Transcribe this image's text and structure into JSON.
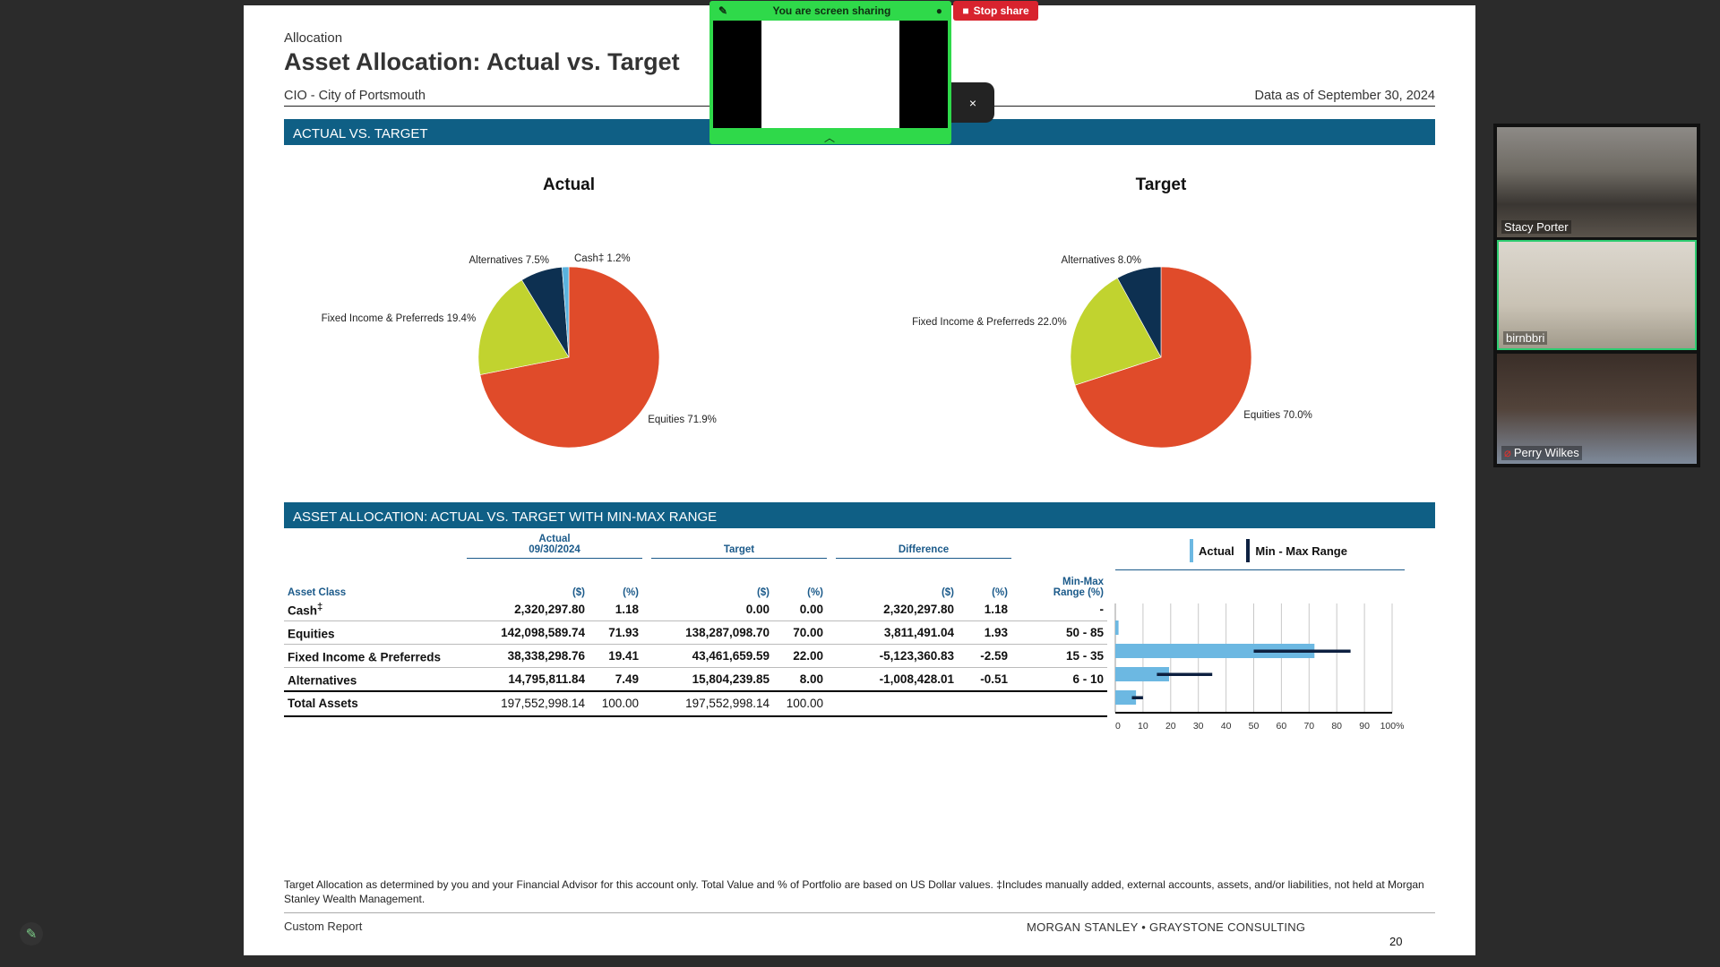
{
  "report": {
    "eyebrow": "Allocation",
    "title": "Asset Allocation: Actual vs. Target",
    "client": "CIO - City of Portsmouth",
    "as_of": "Data as of September 30, 2024"
  },
  "section1": {
    "title": "ACTUAL VS. TARGET"
  },
  "section2": {
    "title": "ASSET ALLOCATION: ACTUAL VS. TARGET WITH MIN-MAX RANGE"
  },
  "colors": {
    "equities": "#e04b2a",
    "fixed_income": "#c1d32f",
    "alternatives": "#0d3051",
    "cash": "#5ab2de",
    "actual_bar": "#6cb8e2",
    "range_bar": "#0d2040",
    "band": "#0f5f85"
  },
  "chart_data": [
    {
      "type": "pie",
      "title": "Actual",
      "labels": [
        "Equities",
        "Fixed Income & Preferreds",
        "Alternatives",
        "Cash‡"
      ],
      "values": [
        71.9,
        19.4,
        7.5,
        1.2
      ],
      "label_text": [
        "Equities 71.9%",
        "Fixed Income & Preferreds 19.4%",
        "Alternatives 7.5%",
        "Cash‡ 1.2%"
      ]
    },
    {
      "type": "pie",
      "title": "Target",
      "labels": [
        "Equities",
        "Fixed Income & Preferreds",
        "Alternatives"
      ],
      "values": [
        70.0,
        22.0,
        8.0
      ],
      "label_text": [
        "Equities 70.0%",
        "Fixed Income & Preferreds 22.0%",
        "Alternatives 8.0%"
      ]
    },
    {
      "type": "bar",
      "orientation": "horizontal",
      "categories": [
        "Cash‡",
        "Equities",
        "Fixed Income & Preferreds",
        "Alternatives"
      ],
      "series": [
        {
          "name": "Actual",
          "values": [
            1.18,
            71.93,
            19.41,
            7.49
          ]
        }
      ],
      "ranges": {
        "name": "Min - Max Range",
        "values": [
          null,
          [
            50,
            85
          ],
          [
            15,
            35
          ],
          [
            6,
            10
          ]
        ]
      },
      "xlim": [
        0,
        100
      ],
      "tick_labels": [
        "0",
        "10",
        "20",
        "30",
        "40",
        "50",
        "60",
        "70",
        "80",
        "90",
        "100%"
      ],
      "legend": "top"
    }
  ],
  "table": {
    "group_headers": {
      "actual_line1": "Actual",
      "actual_line2": "09/30/2024",
      "target": "Target",
      "difference": "Difference"
    },
    "column_headers": {
      "asset_class": "Asset Class",
      "dollars": "($)",
      "pct": "(%)",
      "minmax_line1": "Min-Max",
      "minmax_line2": "Range (%)"
    },
    "rows": [
      {
        "name": "Cash",
        "mark": "‡",
        "actual_usd": "2,320,297.80",
        "actual_pct": "1.18",
        "target_usd": "0.00",
        "target_pct": "0.00",
        "diff_usd": "2,320,297.80",
        "diff_pct": "1.18",
        "range": "-"
      },
      {
        "name": "Equities",
        "mark": "",
        "actual_usd": "142,098,589.74",
        "actual_pct": "71.93",
        "target_usd": "138,287,098.70",
        "target_pct": "70.00",
        "diff_usd": "3,811,491.04",
        "diff_pct": "1.93",
        "range": "50 - 85"
      },
      {
        "name": "Fixed Income & Preferreds",
        "mark": "",
        "actual_usd": "38,338,298.76",
        "actual_pct": "19.41",
        "target_usd": "43,461,659.59",
        "target_pct": "22.00",
        "diff_usd": "-5,123,360.83",
        "diff_pct": "-2.59",
        "range": "15 - 35"
      },
      {
        "name": "Alternatives",
        "mark": "",
        "actual_usd": "14,795,811.84",
        "actual_pct": "7.49",
        "target_usd": "15,804,239.85",
        "target_pct": "8.00",
        "diff_usd": "-1,008,428.01",
        "diff_pct": "-0.51",
        "range": "6 - 10"
      }
    ],
    "total": {
      "name": "Total Assets",
      "actual_usd": "197,552,998.14",
      "actual_pct": "100.00",
      "target_usd": "197,552,998.14",
      "target_pct": "100.00"
    }
  },
  "legend": {
    "actual": "Actual",
    "range": "Min - Max Range"
  },
  "footnote": "Target Allocation as determined by you and your Financial Advisor for this account only. Total Value and % of Portfolio are based on US Dollar values. ‡Includes manually added, external accounts, assets, and/or liabilities, not held at Morgan Stanley Wealth Management.",
  "footer": {
    "left": "Custom Report",
    "brand": "MORGAN STANLEY  •  GRAYSTONE CONSULTING",
    "page": "20"
  },
  "screen_share": {
    "status": "You are screen sharing",
    "stop_label": "Stop share",
    "close_symbol": "×"
  },
  "participants": [
    {
      "name": "Stacy Porter"
    },
    {
      "name": "birnbbri"
    },
    {
      "name": "Perry Wilkes",
      "muted": true
    }
  ]
}
